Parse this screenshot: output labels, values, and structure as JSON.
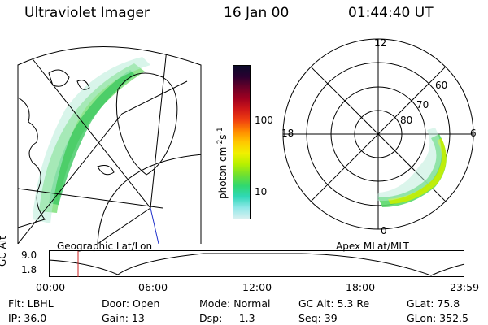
{
  "header": {
    "instrument": "Ultraviolet Imager",
    "date": "16 Jan 00",
    "time": "01:44:40 UT"
  },
  "colorbar": {
    "label": "photon cm",
    "label_exp1": "-2",
    "label_mid": "s",
    "label_exp2": "-1",
    "ticks": [
      "100",
      "10"
    ],
    "colors": [
      "#0b0b2a",
      "#2a0030",
      "#6a0028",
      "#a00020",
      "#d01818",
      "#f04010",
      "#ff8a00",
      "#ffc800",
      "#f0f000",
      "#b8f000",
      "#70e030",
      "#30d870",
      "#30d8b8",
      "#90e8e8",
      "#d8f0f0"
    ]
  },
  "left_panel": {
    "title": "Geographic Lat/Lon"
  },
  "polar_plot": {
    "title": "Apex MLat/MLT",
    "mlt_labels": {
      "top": "12",
      "left": "18",
      "right": "6",
      "bottom": "0"
    },
    "lat_labels": [
      "60",
      "70",
      "80"
    ]
  },
  "timeline": {
    "ylabel": "GC Alt",
    "yticks": [
      "9.0",
      "1.8"
    ],
    "xticks": [
      "00:00",
      "06:00",
      "12:00",
      "18:00",
      "23:59"
    ]
  },
  "status": {
    "filter": "Flt: LBHL",
    "door": "Door: Open",
    "mode": "Mode: Normal",
    "gc_alt": "GC Alt: 5.3 Re",
    "glat": "GLat:  75.8",
    "ip": "IP: 36.0",
    "gain": "Gain: 13",
    "dsp": "Dsp:    -1.3",
    "seq": "Seq: 39",
    "glon": "GLon: 352.5"
  }
}
